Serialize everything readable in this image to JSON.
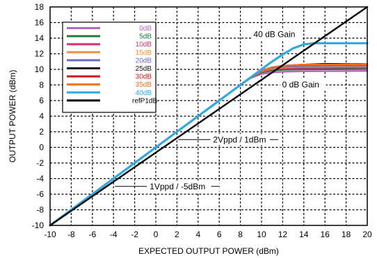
{
  "chart_data": {
    "type": "line",
    "title": "",
    "xlabel": "EXPECTED OUTPUT POWER (dBm)",
    "ylabel": "OUTPUT POWER  (dBm)",
    "xlim": [
      -10,
      20
    ],
    "ylim": [
      -10,
      18
    ],
    "x_ticks": [
      -10,
      -8,
      -6,
      -4,
      -2,
      0,
      2,
      4,
      6,
      8,
      10,
      12,
      14,
      16,
      18,
      20
    ],
    "y_ticks": [
      -10,
      -8,
      -6,
      -4,
      -2,
      0,
      2,
      4,
      6,
      8,
      10,
      12,
      14,
      16,
      18
    ],
    "x_tick_labels": [
      "-10",
      "-8",
      "-6",
      "-4",
      "-2",
      "0",
      "2",
      "4",
      "6",
      "8",
      "10",
      "12",
      "14",
      "16",
      "18",
      "20"
    ],
    "y_tick_labels": [
      "-10",
      "-8",
      "-6",
      "-4",
      "-2",
      "0",
      "2",
      "4",
      "6",
      "8",
      "10",
      "12",
      "14",
      "16",
      "18"
    ],
    "grid": true,
    "legend_position": "top-left",
    "series": [
      {
        "name": "0dB",
        "color": "#c060c0",
        "points": [
          [
            -10,
            -10
          ],
          [
            8,
            8
          ],
          [
            9,
            8.9
          ],
          [
            10,
            9.4
          ],
          [
            11,
            9.6
          ],
          [
            12,
            9.7
          ],
          [
            14,
            9.75
          ],
          [
            20,
            9.8
          ]
        ]
      },
      {
        "name": "5dB",
        "color": "#1f7a3a",
        "points": [
          [
            -10,
            -10
          ],
          [
            8,
            8
          ],
          [
            9,
            9
          ],
          [
            10,
            9.6
          ],
          [
            11,
            9.85
          ],
          [
            12,
            9.95
          ],
          [
            14,
            10.0
          ],
          [
            20,
            10.05
          ]
        ]
      },
      {
        "name": "10dB",
        "color": "#e0306a",
        "points": [
          [
            -10,
            -10
          ],
          [
            8,
            8
          ],
          [
            9,
            9
          ],
          [
            10,
            9.7
          ],
          [
            11,
            10.0
          ],
          [
            12,
            10.15
          ],
          [
            14,
            10.2
          ],
          [
            20,
            10.25
          ]
        ]
      },
      {
        "name": "15dB",
        "color": "#f09040",
        "points": [
          [
            -10,
            -10
          ],
          [
            8,
            8
          ],
          [
            9,
            9
          ],
          [
            10,
            9.75
          ],
          [
            11,
            10.1
          ],
          [
            12,
            10.25
          ],
          [
            14,
            10.35
          ],
          [
            20,
            10.4
          ]
        ]
      },
      {
        "name": "20dB",
        "color": "#6a6ac0",
        "points": [
          [
            -10,
            -10
          ],
          [
            8,
            8
          ],
          [
            9,
            9
          ],
          [
            10,
            9.8
          ],
          [
            11,
            10.2
          ],
          [
            12,
            10.35
          ],
          [
            14,
            10.45
          ],
          [
            20,
            10.5
          ]
        ]
      },
      {
        "name": "25dB",
        "color": "#111111",
        "points": [
          [
            -10,
            -10
          ],
          [
            8,
            8
          ],
          [
            9,
            9
          ],
          [
            10,
            9.85
          ],
          [
            11,
            10.25
          ],
          [
            12,
            10.45
          ],
          [
            14,
            10.6
          ],
          [
            16,
            10.7
          ],
          [
            20,
            10.65
          ]
        ]
      },
      {
        "name": "30dB",
        "color": "#d01818",
        "points": [
          [
            -10,
            -10
          ],
          [
            8,
            8
          ],
          [
            9,
            9
          ],
          [
            10,
            9.85
          ],
          [
            11,
            10.25
          ],
          [
            12,
            10.45
          ],
          [
            14,
            10.6
          ],
          [
            20,
            10.55
          ]
        ]
      },
      {
        "name": "35dB",
        "color": "#f07020",
        "points": [
          [
            -10,
            -10
          ],
          [
            8,
            8
          ],
          [
            9,
            9
          ],
          [
            10,
            9.85
          ],
          [
            11,
            10.25
          ],
          [
            12,
            10.45
          ],
          [
            14,
            10.6
          ],
          [
            20,
            10.6
          ]
        ]
      },
      {
        "name": "40dB",
        "color": "#30a8e0",
        "points": [
          [
            -10,
            -10
          ],
          [
            10,
            10
          ],
          [
            11,
            11
          ],
          [
            12,
            11.9
          ],
          [
            13,
            12.7
          ],
          [
            14,
            13.2
          ],
          [
            15,
            13.35
          ],
          [
            20,
            13.35
          ]
        ]
      },
      {
        "name": "refP1dB",
        "color": "#000000",
        "points": [
          [
            -10,
            -10
          ],
          [
            20,
            18
          ]
        ]
      }
    ],
    "annotations": [
      {
        "text": "40 dB Gain",
        "x": 14.5,
        "y": 13.8
      },
      {
        "text": "0 dB Gain",
        "x": 18,
        "y": 9.1
      },
      {
        "text": "2Vppd / 1dBm",
        "x": 2,
        "y": 1
      },
      {
        "text": "1Vppd / -5dBm",
        "x": -4,
        "y": -5
      }
    ]
  }
}
